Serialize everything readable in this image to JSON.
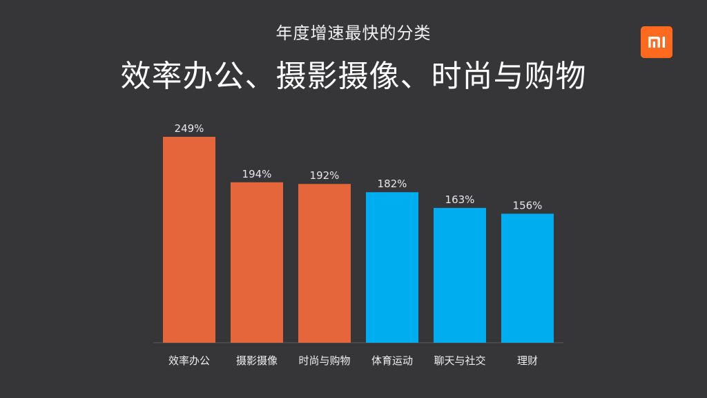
{
  "header": {
    "subtitle": "年度增速最快的分类",
    "title": "效率办公、摄影摄像、时尚与购物"
  },
  "logo": {
    "icon": "mi-logo-icon",
    "brand_color": "#ff6a1f"
  },
  "chart_data": {
    "type": "bar",
    "title": "年度增速最快的分类",
    "categories": [
      "效率办公",
      "摄影摄像",
      "时尚与购物",
      "体育运动",
      "聊天与社交",
      "理财"
    ],
    "values": [
      249,
      194,
      192,
      182,
      163,
      156
    ],
    "value_labels": [
      "249%",
      "194%",
      "192%",
      "182%",
      "163%",
      "156%"
    ],
    "unit": "%",
    "colors": [
      "#e4663a",
      "#e4663a",
      "#e4663a",
      "#00aeef",
      "#00aeef",
      "#00aeef"
    ],
    "ylim": [
      0,
      249
    ],
    "grid": false,
    "legend": "none",
    "xlabel": "",
    "ylabel": ""
  }
}
